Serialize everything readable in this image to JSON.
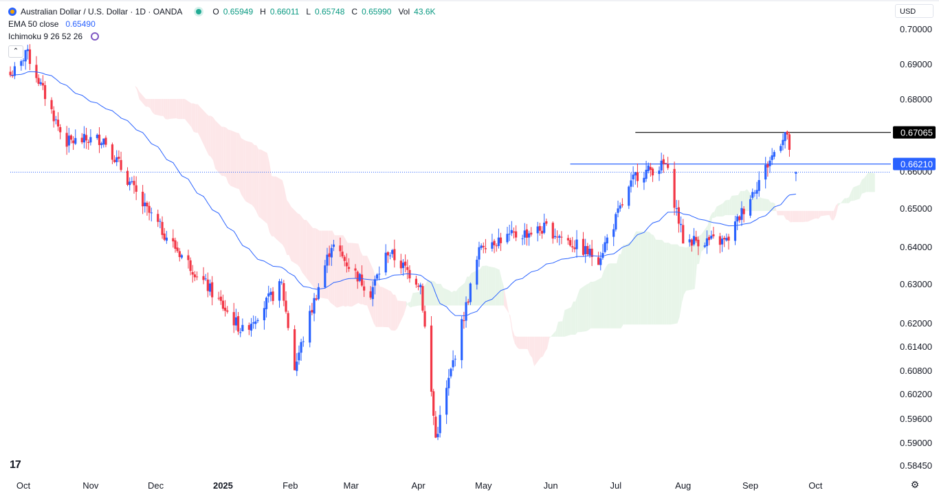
{
  "legend": {
    "title": "Australian Dollar / U.S. Dollar · 1D · OANDA",
    "open_key": "O",
    "open": "0.65949",
    "high_key": "H",
    "high": "0.66011",
    "low_key": "L",
    "low": "0.65748",
    "close_key": "C",
    "close": "0.65990",
    "vol_key": "Vol",
    "vol": "43.6K",
    "ema_label": "EMA 50 close",
    "ema_value": "0.65490",
    "ichimoku_label": "Ichimoku 9 26 52 26"
  },
  "currency": "USD",
  "colors": {
    "up": "#2962ff",
    "down": "#f23645",
    "ema": "#2962ff",
    "kumo_bull": "#e8f5e9",
    "kumo_bear": "#fde7e9",
    "resistance": "#000000",
    "support": "#2962ff"
  },
  "chart_data": {
    "type": "candlestick",
    "series_name": "AUDUSD",
    "x": {
      "type": "date",
      "range": [
        "2024-09-25",
        "2025-10-20"
      ],
      "tick_labels": [
        "Oct",
        "Nov",
        "Dec",
        "2025",
        "Feb",
        "Mar",
        "Apr",
        "May",
        "Jun",
        "Jul",
        "Aug",
        "Sep",
        "Oct"
      ],
      "tick_dates": [
        "2024-10-01",
        "2024-11-01",
        "2024-12-01",
        "2025-01-01",
        "2025-02-01",
        "2025-03-01",
        "2025-04-01",
        "2025-05-01",
        "2025-06-01",
        "2025-07-01",
        "2025-08-01",
        "2025-09-01",
        "2025-10-01"
      ]
    },
    "y": {
      "scale": "nonlinear",
      "range": [
        0.58,
        0.705
      ],
      "tick_labels": [
        "0.70000",
        "0.69000",
        "0.68000",
        "0.67000",
        "0.66000",
        "0.65000",
        "0.64000",
        "0.63000",
        "0.62000",
        "0.61400",
        "0.60800",
        "0.60200",
        "0.59600",
        "0.59000",
        "0.58450"
      ],
      "tick_values": [
        0.7,
        0.69,
        0.68,
        0.67,
        0.66,
        0.65,
        0.64,
        0.63,
        0.62,
        0.614,
        0.608,
        0.602,
        0.596,
        0.59,
        0.5845
      ]
    },
    "key_points": [
      {
        "date": "2024-09-30",
        "close": 0.69
      },
      {
        "date": "2024-10-02",
        "high": 0.6942
      },
      {
        "date": "2024-10-20",
        "close": 0.668
      },
      {
        "date": "2024-11-07",
        "high": 0.669
      },
      {
        "date": "2024-11-25",
        "close": 0.651
      },
      {
        "date": "2024-12-10",
        "close": 0.64
      },
      {
        "date": "2025-01-10",
        "low": 0.618
      },
      {
        "date": "2025-01-28",
        "close": 0.63
      },
      {
        "date": "2025-02-03",
        "low": 0.6088
      },
      {
        "date": "2025-02-20",
        "high": 0.6408
      },
      {
        "date": "2025-03-10",
        "close": 0.628
      },
      {
        "date": "2025-03-18",
        "high": 0.639
      },
      {
        "date": "2025-04-02",
        "close": 0.63
      },
      {
        "date": "2025-04-09",
        "low": 0.5913
      },
      {
        "date": "2025-04-30",
        "close": 0.641
      },
      {
        "date": "2025-05-30",
        "close": 0.645
      },
      {
        "date": "2025-06-23",
        "low": 0.637
      },
      {
        "date": "2025-07-10",
        "high": 0.659
      },
      {
        "date": "2025-07-24",
        "high": 0.662
      },
      {
        "date": "2025-08-01",
        "low": 0.642
      },
      {
        "date": "2025-08-21",
        "low": 0.6415
      },
      {
        "date": "2025-09-17",
        "high": 0.6707
      },
      {
        "date": "2025-09-22",
        "close": 0.6599
      }
    ],
    "horizontal_lines": [
      {
        "label": "0.67065",
        "value": 0.67065,
        "style": "solid",
        "color": "#000000",
        "start": "2025-07-10"
      },
      {
        "label": "0.66210",
        "value": 0.6621,
        "style": "solid",
        "color": "#2962ff",
        "start": "2025-06-10"
      },
      {
        "label": "",
        "value": 0.6599,
        "style": "dotted",
        "color": "#2962ff",
        "start": "2024-09-25"
      }
    ],
    "indicators": [
      "EMA 50 close",
      "Ichimoku 9 26 52 26"
    ]
  }
}
